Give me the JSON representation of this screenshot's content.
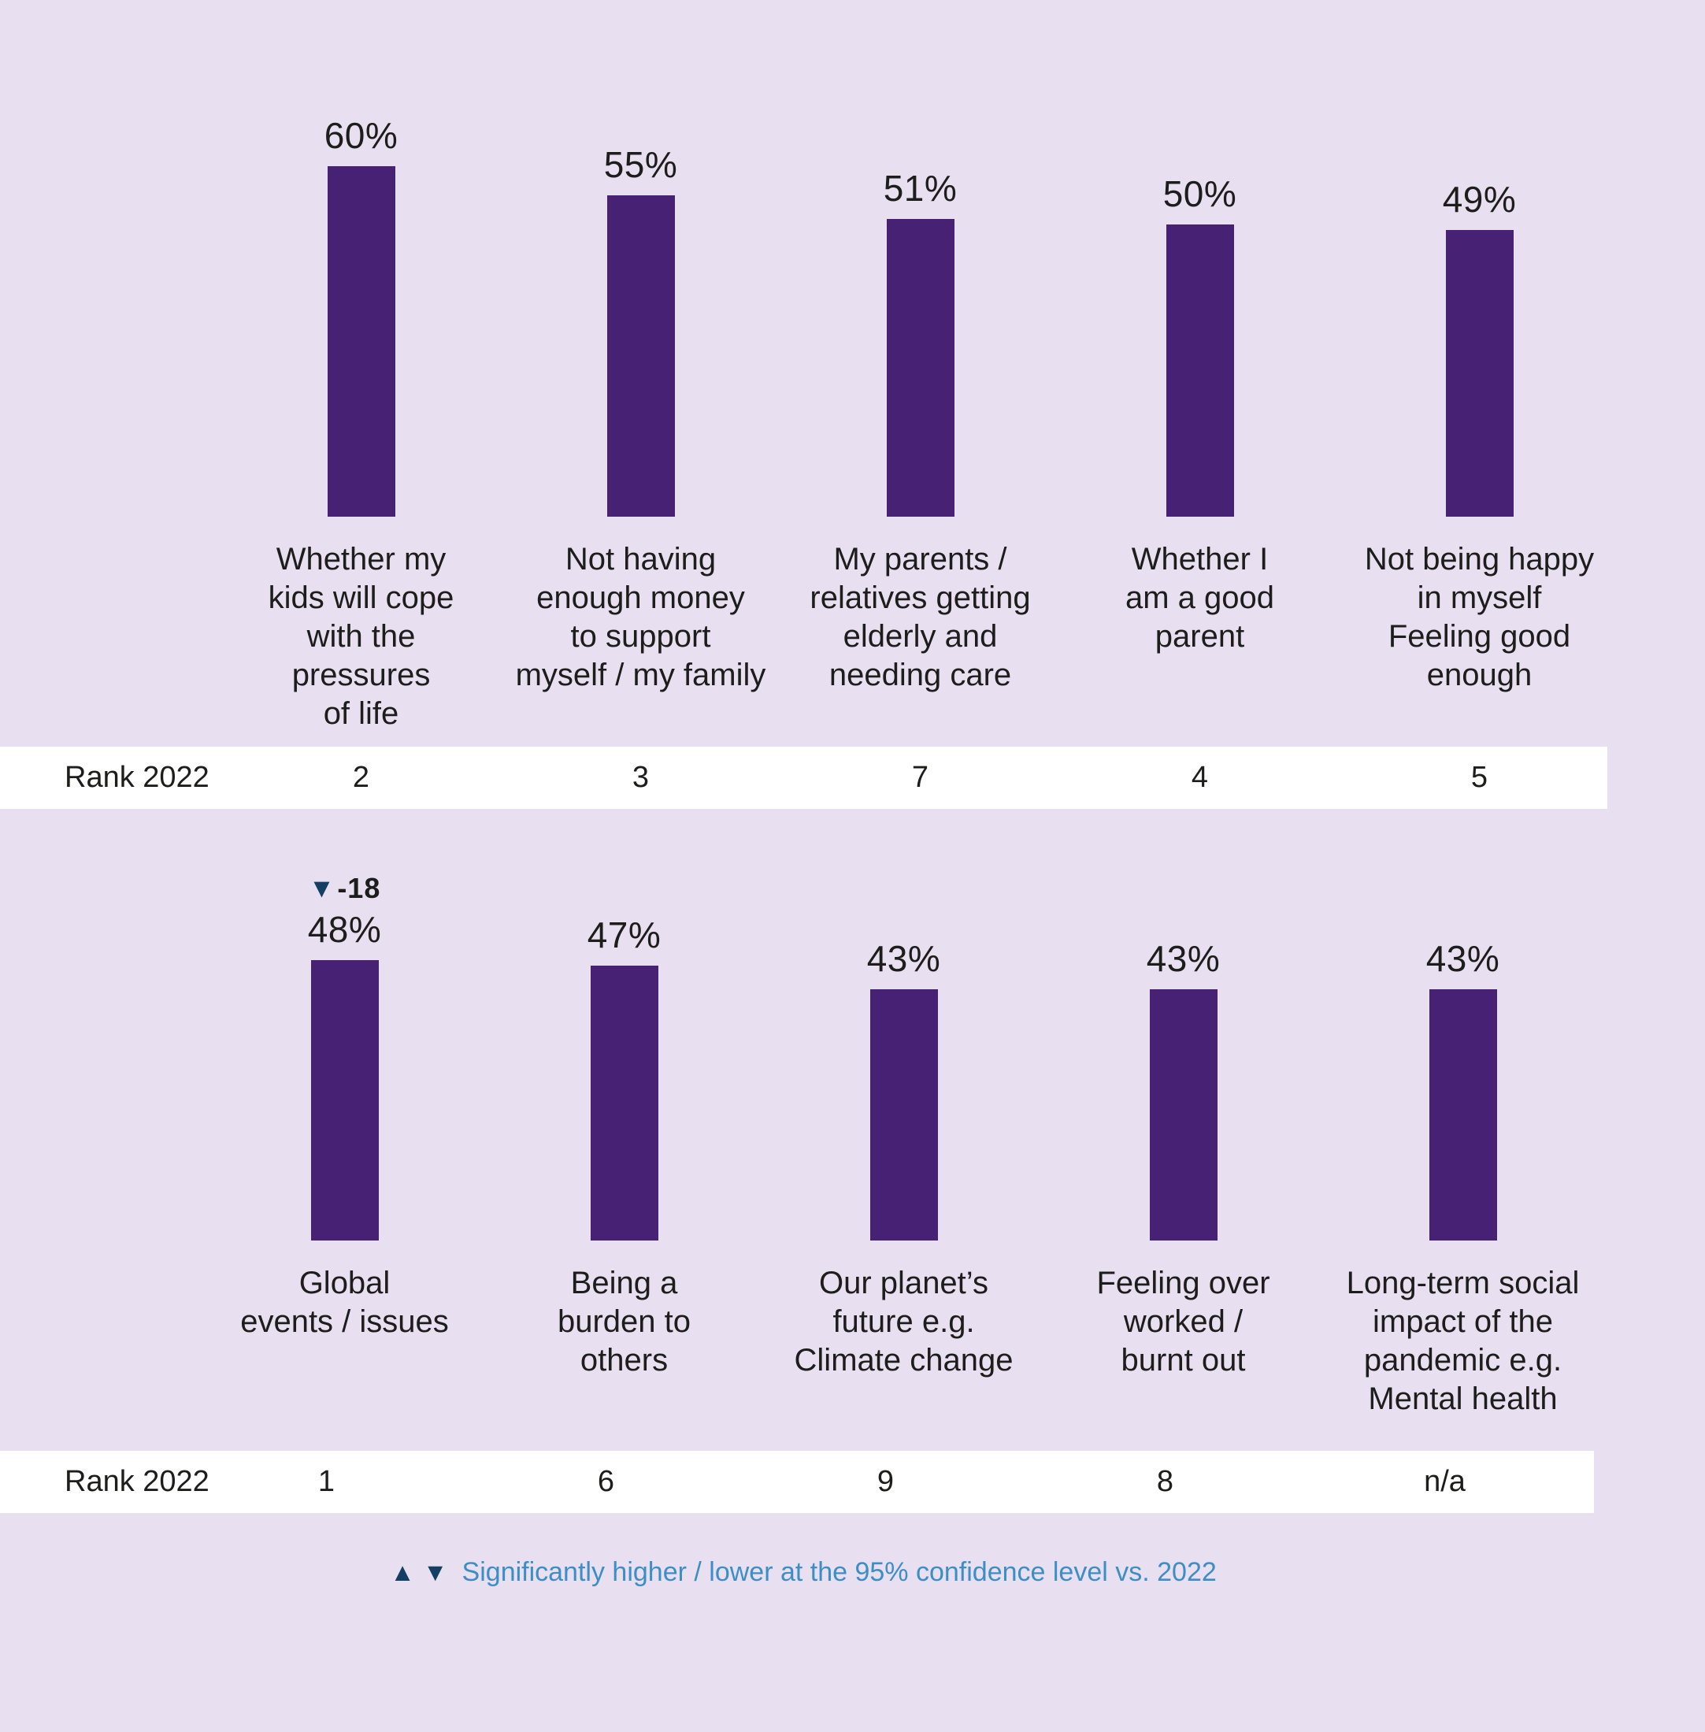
{
  "colors": {
    "bar_purple": "#472173",
    "background_lavender": "#e8dff0",
    "rank_band_white": "#ffffff",
    "marker_navy": "#123f63",
    "footnote_blue": "#3e8ec6",
    "text_black": "#1d1d1b"
  },
  "chart_data": {
    "type": "bar",
    "unit": "%",
    "ylim": [
      0,
      100
    ],
    "grid": false,
    "legend_position": "none",
    "rank_row_label": "Rank 2022",
    "rows": [
      {
        "bars": [
          {
            "label": "Whether my\nkids will cope\nwith the\npressures\nof life",
            "value": 60,
            "display": "60%",
            "rank_2022": "2",
            "annotation": null
          },
          {
            "label": "Not having\nenough money\nto support\nmyself / my family",
            "value": 55,
            "display": "55%",
            "rank_2022": "3",
            "annotation": null
          },
          {
            "label": "My parents /\nrelatives getting\nelderly and\nneeding care",
            "value": 51,
            "display": "51%",
            "rank_2022": "7",
            "annotation": null
          },
          {
            "label": "Whether I\nam a good\nparent",
            "value": 50,
            "display": "50%",
            "rank_2022": "4",
            "annotation": null
          },
          {
            "label": "Not being happy\nin myself\nFeeling good\nenough",
            "value": 49,
            "display": "49%",
            "rank_2022": "5",
            "annotation": null
          }
        ]
      },
      {
        "bars": [
          {
            "label": "Global\nevents / issues",
            "value": 48,
            "display": "48%",
            "rank_2022": "1",
            "annotation": {
              "marker": "▼",
              "delta": "-18"
            }
          },
          {
            "label": "Being a\nburden to\nothers",
            "value": 47,
            "display": "47%",
            "rank_2022": "6",
            "annotation": null
          },
          {
            "label": "Our planet’s\nfuture e.g.\nClimate change",
            "value": 43,
            "display": "43%",
            "rank_2022": "9",
            "annotation": null
          },
          {
            "label": "Feeling over\nworked /\nburnt out",
            "value": 43,
            "display": "43%",
            "rank_2022": "8",
            "annotation": null
          },
          {
            "label": "Long-term social\nimpact of the\npandemic e.g.\nMental health",
            "value": 43,
            "display": "43%",
            "rank_2022": "n/a",
            "annotation": null
          }
        ]
      }
    ],
    "footnote": {
      "up_marker": "▲",
      "down_marker": "▼",
      "text": "Significantly higher / lower at the 95% confidence level vs. 2022"
    }
  }
}
